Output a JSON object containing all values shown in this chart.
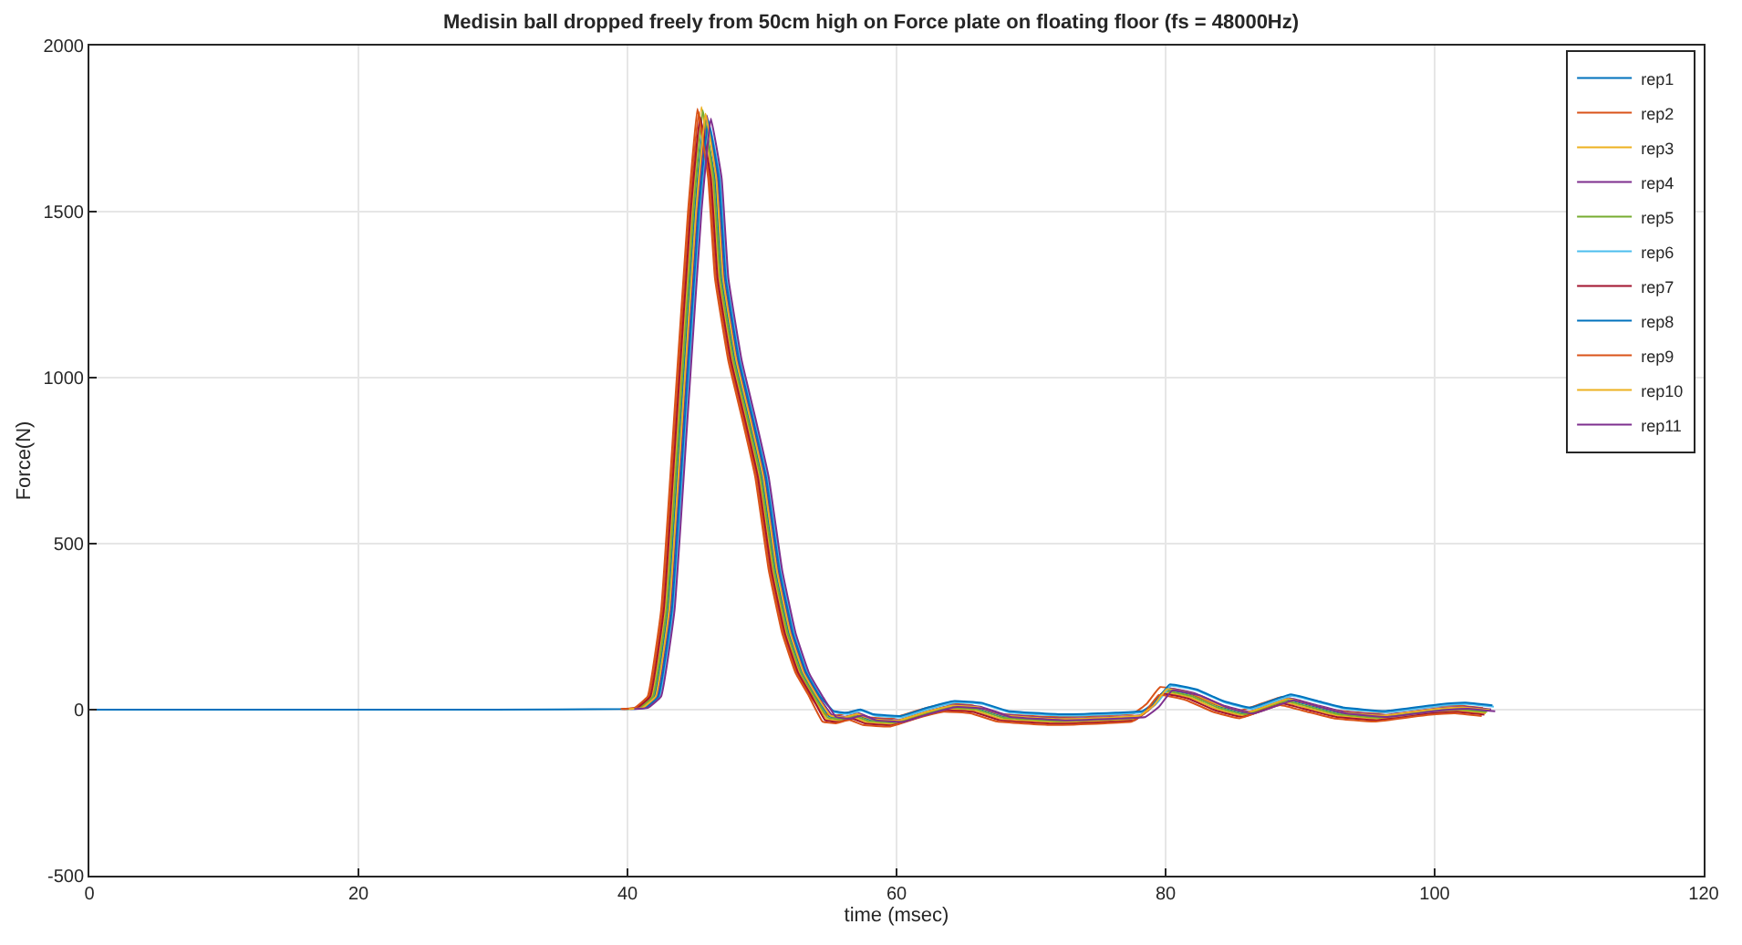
{
  "chart_data": {
    "type": "line",
    "title": "Medisin ball dropped freely from 50cm high on Force plate on floating floor (fs = 48000Hz)",
    "xlabel": "time (msec)",
    "ylabel": "Force(N)",
    "series": [
      {
        "name": "rep1",
        "color": "#0072bd",
        "x": [
          0,
          10,
          20,
          30,
          40,
          41,
          42,
          43,
          44,
          45,
          45.7,
          46.5,
          47,
          48,
          49,
          50,
          51,
          52,
          53,
          54,
          55,
          56,
          57,
          58,
          60,
          62,
          64,
          66,
          68,
          72,
          76,
          78,
          79,
          80,
          82,
          84,
          86,
          89,
          91,
          93,
          96,
          100,
          102,
          104
        ],
        "values": [
          0,
          0,
          0,
          0,
          2,
          5,
          40,
          300,
          900,
          1500,
          1770,
          1600,
          1300,
          1050,
          880,
          700,
          420,
          230,
          110,
          40,
          -20,
          -25,
          -15,
          -30,
          -35,
          -10,
          10,
          5,
          -20,
          -30,
          -25,
          -20,
          10,
          60,
          45,
          10,
          -10,
          30,
          10,
          -10,
          -20,
          0,
          5,
          -3
        ]
      },
      {
        "name": "rep2",
        "color": "#d95319",
        "x": [
          39.6,
          40.6,
          41.6,
          42.6,
          43.6,
          44.6,
          45.3,
          46.1,
          46.6,
          47.6,
          48.6,
          49.6,
          50.6,
          51.6,
          52.6,
          53.6,
          54.6,
          55.6,
          56.6,
          57.6,
          59.6,
          61.6,
          63.6,
          65.6,
          67.6,
          71.6,
          75.6,
          77.6,
          78.6,
          79.6,
          81.6,
          83.6,
          85.6,
          88.6,
          90.6,
          92.6,
          95.6,
          99.6,
          101.6,
          103.6
        ],
        "values": [
          2,
          5,
          40,
          300,
          900,
          1500,
          1800,
          1600,
          1300,
          1050,
          880,
          700,
          420,
          230,
          110,
          40,
          -12,
          -17,
          -7,
          -22,
          -27,
          -2,
          18,
          13,
          -12,
          -22,
          -17,
          -12,
          18,
          68,
          53,
          18,
          -2,
          38,
          18,
          -2,
          -12,
          8,
          13,
          5
        ]
      },
      {
        "name": "rep3",
        "color": "#edb120",
        "x": [
          39.8,
          40.8,
          41.8,
          42.8,
          43.8,
          44.8,
          45.5,
          46.3,
          46.8,
          47.8,
          48.8,
          49.8,
          50.8,
          51.8,
          52.8,
          53.8,
          54.8,
          55.8,
          56.8,
          57.8,
          59.8,
          61.8,
          63.8,
          65.8,
          67.8,
          71.8,
          75.8,
          77.8,
          78.8,
          79.8,
          81.8,
          83.8,
          85.8,
          88.8,
          90.8,
          92.8,
          95.8,
          99.8,
          101.8,
          103.8
        ],
        "values": [
          2,
          5,
          40,
          300,
          900,
          1500,
          1815,
          1600,
          1300,
          1050,
          880,
          700,
          420,
          230,
          110,
          40,
          -28,
          -33,
          -23,
          -38,
          -43,
          -18,
          2,
          -3,
          -28,
          -38,
          -33,
          -28,
          2,
          52,
          37,
          2,
          -18,
          22,
          2,
          -18,
          -28,
          -8,
          -3,
          -11
        ]
      },
      {
        "name": "rep4",
        "color": "#7e2f8e",
        "x": [
          40.2,
          41.2,
          42.2,
          43.2,
          44.2,
          45.2,
          45.9,
          46.7,
          47.2,
          48.2,
          49.2,
          50.2,
          51.2,
          52.2,
          53.2,
          54.2,
          55.2,
          56.2,
          57.2,
          58.2,
          60.2,
          62.2,
          64.2,
          66.2,
          68.2,
          72.2,
          76.2,
          78.2,
          79.2,
          80.2,
          82.2,
          84.2,
          86.2,
          89.2,
          91.2,
          93.2,
          96.2,
          100.2,
          102.2,
          104.2
        ],
        "values": [
          2,
          5,
          40,
          300,
          900,
          1500,
          1790,
          1600,
          1300,
          1050,
          880,
          700,
          420,
          230,
          110,
          40,
          -16,
          -21,
          -11,
          -26,
          -31,
          -6,
          14,
          9,
          -16,
          -26,
          -21,
          -16,
          14,
          64,
          49,
          14,
          -6,
          34,
          14,
          -6,
          -16,
          4,
          9,
          1
        ]
      },
      {
        "name": "rep5",
        "color": "#77ac30",
        "x": [
          39.9,
          40.9,
          41.9,
          42.9,
          43.9,
          44.9,
          45.6,
          46.4,
          46.9,
          47.9,
          48.9,
          49.9,
          50.9,
          51.9,
          52.9,
          53.9,
          54.9,
          55.9,
          56.9,
          57.9,
          59.9,
          61.9,
          63.9,
          65.9,
          67.9,
          71.9,
          75.9,
          77.9,
          78.9,
          79.9,
          81.9,
          83.9,
          85.9,
          88.9,
          90.9,
          92.9,
          95.9,
          99.9,
          101.9,
          103.9
        ],
        "values": [
          2,
          5,
          40,
          300,
          900,
          1500,
          1805,
          1600,
          1300,
          1050,
          880,
          700,
          420,
          230,
          110,
          40,
          -24,
          -29,
          -19,
          -34,
          -39,
          -14,
          6,
          1,
          -24,
          -34,
          -29,
          -24,
          6,
          56,
          41,
          6,
          -14,
          26,
          6,
          -14,
          -24,
          -4,
          1,
          -7
        ]
      },
      {
        "name": "rep6",
        "color": "#4dbeee",
        "x": [
          40.4,
          41.4,
          42.4,
          43.4,
          44.4,
          45.4,
          46.1,
          46.9,
          47.4,
          48.4,
          49.4,
          50.4,
          51.4,
          52.4,
          53.4,
          54.4,
          55.4,
          56.4,
          57.4,
          58.4,
          60.4,
          62.4,
          64.4,
          66.4,
          68.4,
          72.4,
          76.4,
          78.4,
          79.4,
          80.4,
          82.4,
          84.4,
          86.4,
          89.4,
          91.4,
          93.4,
          96.4,
          100.4,
          102.4,
          104.4
        ],
        "values": [
          2,
          5,
          40,
          300,
          900,
          1500,
          1760,
          1600,
          1300,
          1050,
          880,
          700,
          420,
          230,
          110,
          40,
          -8,
          -13,
          -3,
          -18,
          -23,
          2,
          22,
          17,
          -8,
          -18,
          -13,
          -8,
          22,
          72,
          57,
          22,
          2,
          42,
          22,
          2,
          -8,
          12,
          17,
          9
        ]
      },
      {
        "name": "rep7",
        "color": "#a2142f",
        "x": [
          39.7,
          40.7,
          41.7,
          42.7,
          43.7,
          44.7,
          45.4,
          46.2,
          46.7,
          47.7,
          48.7,
          49.7,
          50.7,
          51.7,
          52.7,
          53.7,
          54.7,
          55.7,
          56.7,
          57.7,
          59.7,
          61.7,
          63.7,
          65.7,
          67.7,
          71.7,
          75.7,
          77.7,
          78.7,
          79.7,
          81.7,
          83.7,
          85.7,
          88.7,
          90.7,
          92.7,
          95.7,
          99.7,
          101.7,
          103.7
        ],
        "values": [
          2,
          5,
          40,
          300,
          900,
          1500,
          1785,
          1600,
          1300,
          1050,
          880,
          700,
          420,
          230,
          110,
          40,
          -32,
          -37,
          -27,
          -42,
          -47,
          -22,
          -2,
          -7,
          -32,
          -42,
          -37,
          -32,
          -2,
          48,
          33,
          -2,
          -22,
          18,
          -2,
          -22,
          -32,
          -12,
          -7,
          -15
        ]
      },
      {
        "name": "rep8",
        "color": "#0072bd",
        "x": [
          40.3,
          41.3,
          42.3,
          43.3,
          44.3,
          45.3,
          46,
          46.8,
          47.3,
          48.3,
          49.3,
          50.3,
          51.3,
          52.3,
          53.3,
          54.3,
          55.3,
          56.3,
          57.3,
          58.3,
          60.3,
          62.3,
          64.3,
          66.3,
          68.3,
          72.3,
          76.3,
          78.3,
          79.3,
          80.3,
          82.3,
          84.3,
          86.3,
          89.3,
          91.3,
          93.3,
          96.3,
          100.3,
          102.3,
          104.3
        ],
        "values": [
          2,
          5,
          40,
          300,
          900,
          1500,
          1775,
          1600,
          1300,
          1050,
          880,
          700,
          420,
          230,
          110,
          40,
          -4,
          -9,
          1,
          -14,
          -19,
          6,
          26,
          21,
          -4,
          -14,
          -9,
          -4,
          26,
          76,
          61,
          26,
          6,
          46,
          26,
          6,
          -4,
          16,
          21,
          13
        ]
      },
      {
        "name": "rep9",
        "color": "#d95319",
        "x": [
          39.5,
          40.5,
          41.5,
          42.5,
          43.5,
          44.5,
          45.2,
          46,
          46.5,
          47.5,
          48.5,
          49.5,
          50.5,
          51.5,
          52.5,
          53.5,
          54.5,
          55.5,
          56.5,
          57.5,
          59.5,
          61.5,
          63.5,
          65.5,
          67.5,
          71.5,
          75.5,
          77.5,
          78.5,
          79.5,
          81.5,
          83.5,
          85.5,
          88.5,
          90.5,
          92.5,
          95.5,
          99.5,
          101.5,
          103.5
        ],
        "values": [
          2,
          5,
          40,
          300,
          900,
          1500,
          1810,
          1600,
          1300,
          1050,
          880,
          700,
          420,
          230,
          110,
          40,
          -36,
          -41,
          -31,
          -46,
          -51,
          -26,
          -6,
          -11,
          -36,
          -46,
          -41,
          -36,
          -6,
          44,
          29,
          -6,
          -26,
          14,
          -6,
          -26,
          -36,
          -16,
          -11,
          -19
        ]
      },
      {
        "name": "rep10",
        "color": "#edb120",
        "x": [
          40.1,
          41.1,
          42.1,
          43.1,
          44.1,
          45.1,
          45.8,
          46.6,
          47.1,
          48.1,
          49.1,
          50.1,
          51.1,
          52.1,
          53.1,
          54.1,
          55.1,
          56.1,
          57.1,
          58.1,
          60.1,
          62.1,
          64.1,
          66.1,
          68.1,
          72.1,
          76.1,
          78.1,
          79.1,
          80.1,
          82.1,
          84.1,
          86.1,
          89.1,
          91.1,
          93.1,
          96.1,
          100.1,
          102.1,
          104.1
        ],
        "values": [
          2,
          5,
          40,
          300,
          900,
          1500,
          1795,
          1600,
          1300,
          1050,
          880,
          700,
          420,
          230,
          110,
          40,
          -18,
          -23,
          -13,
          -28,
          -33,
          -8,
          12,
          7,
          -18,
          -28,
          -23,
          -18,
          12,
          62,
          47,
          12,
          -8,
          32,
          12,
          -8,
          -18,
          2,
          7,
          -1
        ]
      },
      {
        "name": "rep11",
        "color": "#7e2f8e",
        "x": [
          40.5,
          41.5,
          42.5,
          43.5,
          44.5,
          45.5,
          46.2,
          47,
          47.5,
          48.5,
          49.5,
          50.5,
          51.5,
          52.5,
          53.5,
          54.5,
          55.5,
          56.5,
          57.5,
          58.5,
          60.5,
          62.5,
          64.5,
          66.5,
          68.5,
          72.5,
          76.5,
          78.5,
          79.5,
          80.5,
          82.5,
          84.5,
          86.5,
          89.5,
          91.5,
          93.5,
          96.5,
          100.5,
          102.5,
          104.5
        ],
        "values": [
          2,
          5,
          40,
          300,
          900,
          1500,
          1780,
          1600,
          1300,
          1050,
          880,
          700,
          420,
          230,
          110,
          40,
          -22,
          -27,
          -17,
          -32,
          -37,
          -12,
          8,
          3,
          -22,
          -32,
          -27,
          -22,
          8,
          58,
          43,
          8,
          -12,
          28,
          8,
          -12,
          -22,
          -2,
          3,
          -5
        ]
      }
    ],
    "xlim": [
      0,
      120
    ],
    "xticks": [
      0,
      20,
      40,
      60,
      80,
      100,
      120
    ],
    "ylim": [
      -500,
      2000
    ],
    "yticks": [
      -500,
      0,
      500,
      1000,
      1500,
      2000
    ],
    "grid": true,
    "legend": "top right",
    "marker": "none",
    "line_style": "solid"
  }
}
